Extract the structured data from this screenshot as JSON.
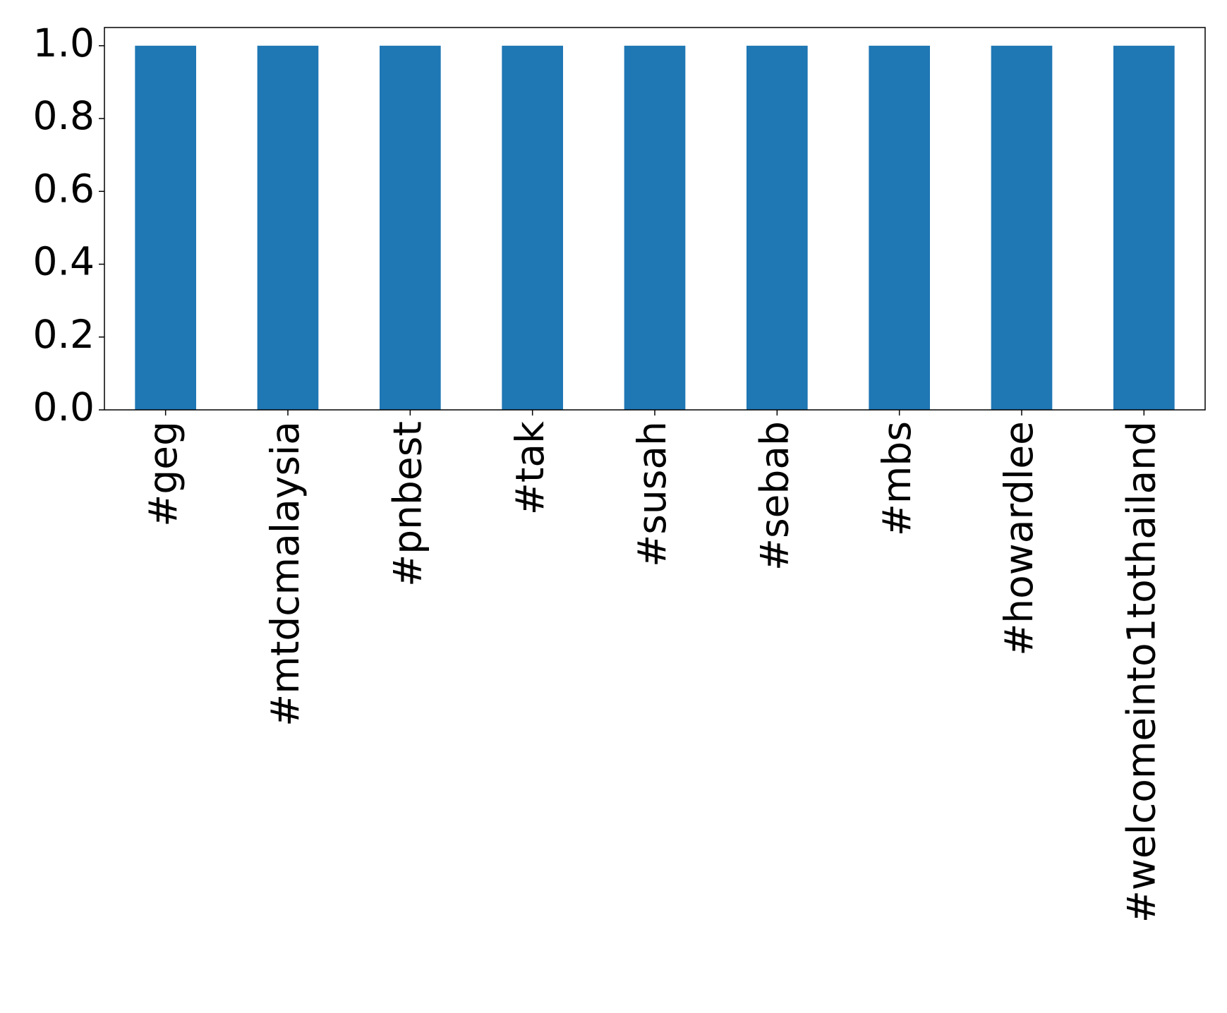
{
  "chart_data": {
    "type": "bar",
    "categories": [
      "#geg",
      "#mtdcmalaysia",
      "#pnbest",
      "#tak",
      "#susah",
      "#sebab",
      "#mbs",
      "#howardlee",
      "#welcomeinto1tothailand"
    ],
    "values": [
      1,
      1,
      1,
      1,
      1,
      1,
      1,
      1,
      1
    ],
    "color": "#1f77b4",
    "ylim": [
      0,
      1.05
    ],
    "yticks": [
      {
        "value": 0,
        "label": "0.0"
      },
      0.2,
      0.4,
      0.6,
      0.8,
      {
        "value": 1,
        "label": "1.0"
      }
    ],
    "grid": false
  }
}
